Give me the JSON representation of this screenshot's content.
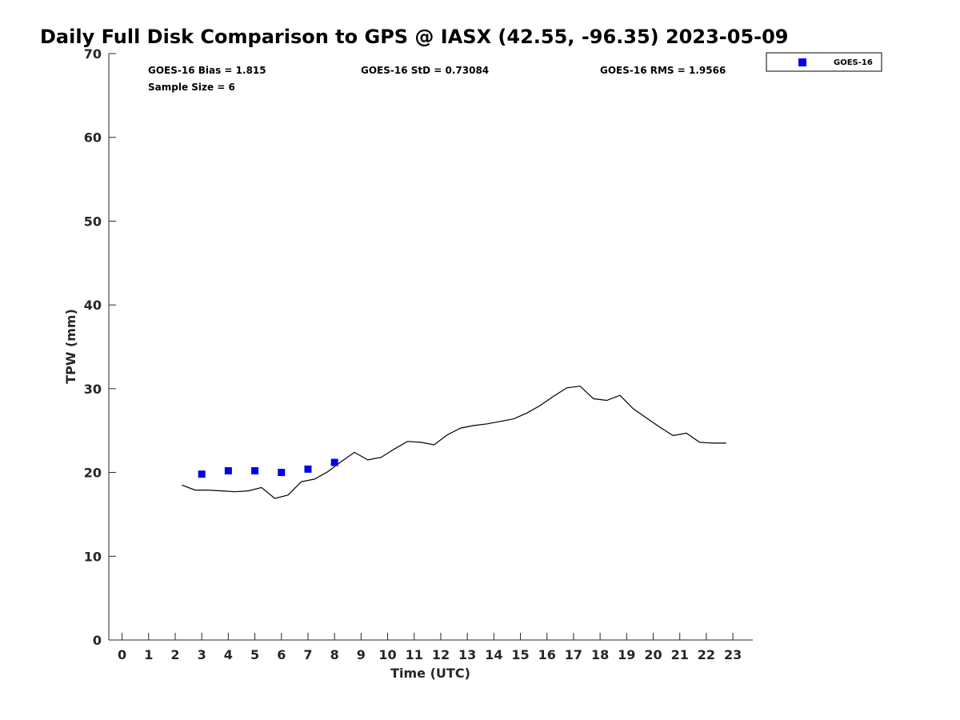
{
  "chart_data": {
    "type": "scatter",
    "title": "Daily Full Disk Comparison to GPS @ IASX (42.55, -96.35) 2023-05-09",
    "xlabel": "Time (UTC)",
    "ylabel": "TPW (mm)",
    "xlim": [
      -0.5,
      23.75
    ],
    "ylim": [
      0,
      70
    ],
    "xticks": [
      0,
      1,
      2,
      3,
      4,
      5,
      6,
      7,
      8,
      9,
      10,
      11,
      12,
      13,
      14,
      15,
      16,
      17,
      18,
      19,
      20,
      21,
      22,
      23
    ],
    "yticks": [
      0,
      10,
      20,
      30,
      40,
      50,
      60,
      70
    ],
    "grid": false,
    "legend": {
      "placement": "top-right-outside",
      "entries": [
        "GOES-16"
      ]
    },
    "stats": {
      "bias": "GOES-16 Bias = 1.815",
      "std": "GOES-16 StD = 0.73084",
      "rms": "GOES-16 RMS = 1.9566",
      "sample": "Sample Size = 6"
    },
    "series": [
      {
        "name": "GOES-16",
        "kind": "scatter",
        "color": "#0000ee",
        "marker": "square",
        "x": [
          3,
          4,
          5,
          6,
          7,
          8
        ],
        "y": [
          19.8,
          20.2,
          20.2,
          20.0,
          20.4,
          21.2
        ]
      },
      {
        "kind": "line",
        "color": "#000000",
        "x": [
          2.25,
          2.75,
          3.25,
          3.75,
          4.25,
          4.75,
          5.25,
          5.75,
          6.25,
          6.75,
          7.25,
          7.75,
          8.25,
          8.75,
          9.25,
          9.75,
          10.25,
          10.75,
          11.25,
          11.75,
          12.25,
          12.75,
          13.25,
          13.75,
          14.25,
          14.75,
          15.25,
          15.75,
          16.25,
          16.75,
          17.25,
          17.75,
          18.25,
          18.75,
          19.25,
          19.75,
          20.25,
          20.75,
          21.25,
          21.75,
          22.25,
          22.75
        ],
        "y": [
          18.5,
          17.9,
          17.9,
          17.8,
          17.7,
          17.8,
          18.2,
          16.9,
          17.3,
          18.9,
          19.2,
          20.1,
          21.3,
          22.4,
          21.5,
          21.8,
          22.8,
          23.7,
          23.6,
          23.3,
          24.5,
          25.3,
          25.6,
          25.8,
          26.1,
          26.4,
          27.1,
          28.0,
          29.1,
          30.1,
          30.3,
          28.8,
          28.6,
          29.2,
          27.6,
          26.5,
          25.4,
          24.4,
          24.7,
          23.6,
          23.5,
          23.5
        ]
      }
    ]
  }
}
